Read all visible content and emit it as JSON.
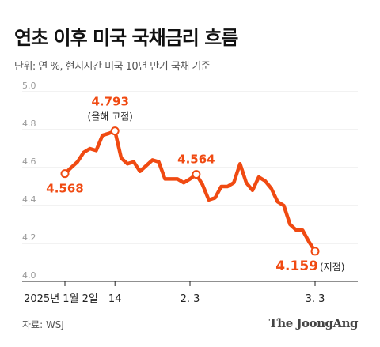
{
  "header": {
    "title": "연초 이후 미국 국채금리 흐름",
    "subtitle": "단위: 연 %, 현지시간 미국 10년 만기 국채 기준"
  },
  "footer": {
    "source": "자료: WSJ",
    "brand": "The JoongAng"
  },
  "colors": {
    "line": "#f04a12",
    "grid": "#e6e6e6",
    "axis": "#222222"
  },
  "chart_data": {
    "type": "line",
    "title": "연초 이후 미국 국채금리 흐름",
    "subtitle": "단위: 연 %, 현지시간 미국 10년 만기 국채 기준",
    "ylim": [
      4.0,
      5.0
    ],
    "yticks": [
      "5.0",
      "4.8",
      "4.6",
      "4.4",
      "4.2",
      "4.0"
    ],
    "xtick_labels": [
      "2025년 1월 2일",
      "14",
      "2. 3",
      "3. 3"
    ],
    "grid": true,
    "series": [
      {
        "values": [
          4.568,
          4.6,
          4.63,
          4.68,
          4.7,
          4.69,
          4.77,
          4.78,
          4.793,
          4.65,
          4.62,
          4.63,
          4.58,
          4.61,
          4.64,
          4.63,
          4.54,
          4.54,
          4.54,
          4.52,
          4.54,
          4.564,
          4.51,
          4.43,
          4.44,
          4.5,
          4.5,
          4.52,
          4.62,
          4.52,
          4.48,
          4.55,
          4.53,
          4.49,
          4.42,
          4.4,
          4.3,
          4.27,
          4.27,
          4.21,
          4.159
        ]
      }
    ],
    "annotations": [
      {
        "label": "4.568",
        "index": 0
      },
      {
        "label": "4.793",
        "note": "(올해 고점)",
        "index": 8
      },
      {
        "label": "4.564",
        "index": 21
      },
      {
        "label": "4.159",
        "note": "(저점)",
        "index": 40
      }
    ]
  }
}
